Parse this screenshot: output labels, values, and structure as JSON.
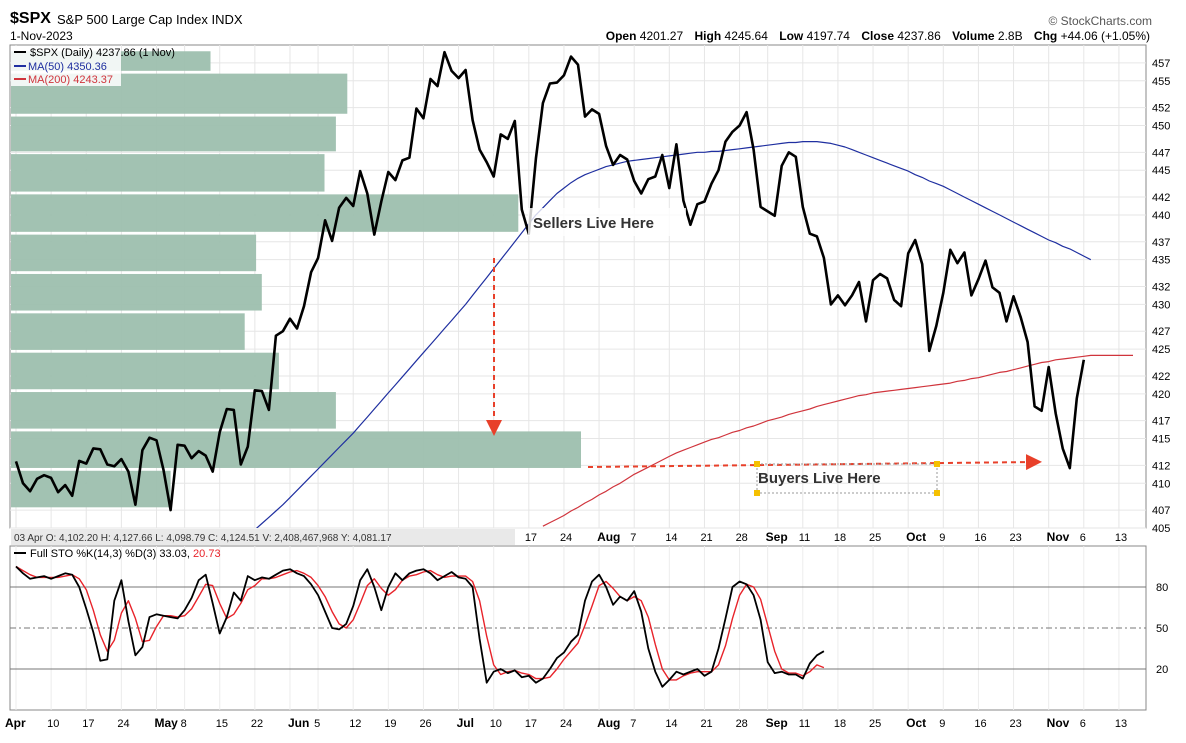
{
  "header": {
    "symbol": "$SPX",
    "name": "S&P 500 Large Cap Index",
    "exchange": "INDX",
    "date": "1-Nov-2023",
    "brand": "© StockCharts.com",
    "ohlc": {
      "open_label": "Open",
      "open": "4201.27",
      "high_label": "High",
      "high": "4245.64",
      "low_label": "Low",
      "low": "4197.74",
      "close_label": "Close",
      "close": "4237.86",
      "volume_label": "Volume",
      "volume": "2.8B",
      "chg_label": "Chg",
      "chg": "+44.06 (+1.05%)"
    }
  },
  "legend": {
    "price": "$SPX (Daily) 4237.86 (1 Nov)",
    "ma50": "MA(50) 4350.36",
    "ma200": "MA(200) 4243.37"
  },
  "annotations": {
    "sellers": "Sellers Live Here",
    "buyers": "Buyers Live Here"
  },
  "info_bar": "03 Apr O: 4,102.20   H: 4,127.66   L: 4,098.79   C: 4,124.51   V: 2,408,467,968   Y: 4,081.17",
  "colors": {
    "price": "#000000",
    "ma50": "#1f2fa0",
    "ma200": "#d0343c",
    "volume_by_price": "#9dbfae",
    "stoch_k": "#000000",
    "stoch_d": "#e8232a",
    "annotation_arrow": "#e8402a"
  },
  "stoch_legend": {
    "label": "Full STO %K(14,3) %D(3) 33.03,",
    "d_value": "20.73"
  },
  "chart_data": [
    {
      "type": "line",
      "ylim": [
        4050,
        4590
      ],
      "yticks": [
        405,
        407,
        410,
        412,
        415,
        417,
        420,
        422,
        425,
        427,
        430,
        432,
        435,
        437,
        440,
        442,
        445,
        447,
        450,
        452,
        455,
        457
      ],
      "x_labels_top": [
        "17",
        "24",
        "Aug",
        "7",
        "14",
        "21",
        "28",
        "Sep",
        "11",
        "18",
        "25",
        "Oct",
        "9",
        "16",
        "23",
        "Nov",
        "6",
        "13"
      ],
      "x_labels_bottom": [
        "Apr",
        "10",
        "17",
        "24",
        "May",
        "8",
        "15",
        "22",
        "Jun",
        "5",
        "12",
        "19",
        "26",
        "Jul",
        "10",
        "17",
        "24",
        "Aug",
        "7",
        "14",
        "21",
        "28",
        "Sep",
        "11",
        "18",
        "25",
        "Oct",
        "9",
        "16",
        "23",
        "Nov",
        "6",
        "13"
      ],
      "x_label_index": [
        0,
        5,
        10,
        15,
        20,
        24,
        29,
        34,
        39,
        43,
        48,
        53,
        58,
        63,
        68,
        73,
        78,
        83,
        88,
        93,
        98,
        103,
        107,
        112,
        117,
        122,
        127,
        132,
        137,
        142,
        147,
        152,
        157
      ],
      "x_label_bold": [
        "Apr",
        "May",
        "Jun",
        "Jul",
        "Aug",
        "Sep",
        "Oct",
        "Nov"
      ],
      "x_max": 160,
      "series": [
        {
          "name": "$SPX (Daily)",
          "values": [
            4124.51,
            4100,
            4091,
            4105,
            4109,
            4106,
            4090,
            4098,
            4086,
            4125,
            4122,
            4139,
            4138,
            4121,
            4119,
            4127,
            4113,
            4076,
            4137,
            4151,
            4148,
            4115,
            4070,
            4143,
            4142,
            4128,
            4136,
            4131,
            4113,
            4157,
            4183,
            4182,
            4121,
            4141,
            4204,
            4203,
            4182,
            4265,
            4270,
            4284,
            4273,
            4298,
            4336,
            4352,
            4394,
            4371,
            4408,
            4419,
            4410,
            4449,
            4424,
            4378,
            4415,
            4448,
            4439,
            4461,
            4464,
            4519,
            4508,
            4552,
            4544,
            4582,
            4561,
            4553,
            4562,
            4506,
            4473,
            4459,
            4443,
            4490,
            4485,
            4505,
            4406,
            4379,
            4463,
            4525,
            4547,
            4548,
            4556,
            4577,
            4568,
            4510,
            4518,
            4513,
            4477,
            4456,
            4467,
            4462,
            4438,
            4424,
            4440,
            4443,
            4467,
            4430,
            4479,
            4416,
            4389,
            4412,
            4415,
            4435,
            4450,
            4482,
            4493,
            4500,
            4515,
            4473,
            4409,
            4404,
            4399,
            4455,
            4470,
            4465,
            4409,
            4379,
            4376,
            4352,
            4300,
            4310,
            4299,
            4310,
            4325,
            4281,
            4327,
            4334,
            4329,
            4305,
            4298,
            4357,
            4372,
            4345,
            4248,
            4276,
            4313,
            4361,
            4346,
            4358,
            4310,
            4328,
            4349,
            4319,
            4313,
            4281,
            4309,
            4286,
            4258,
            4186,
            4181,
            4230,
            4178,
            4139,
            4117,
            4195,
            4238
          ]
        },
        {
          "name": "MA(50)",
          "start_index": 34,
          "values": [
            4048,
            4055,
            4062,
            4069,
            4076,
            4084,
            4092,
            4100,
            4108,
            4116,
            4124,
            4132,
            4140,
            4148,
            4156,
            4165,
            4174,
            4183,
            4192,
            4201,
            4210,
            4219,
            4228,
            4237,
            4246,
            4255,
            4264,
            4273,
            4282,
            4291,
            4300,
            4310,
            4320,
            4330,
            4340,
            4350,
            4360,
            4370,
            4380,
            4390,
            4400,
            4408,
            4416,
            4424,
            4430,
            4436,
            4441,
            4445,
            4448,
            4451,
            4454,
            4456,
            4458,
            4460,
            4461,
            4462,
            4463,
            4464,
            4465,
            4466,
            4467,
            4468,
            4469,
            4470,
            4470,
            4471,
            4471,
            4472,
            4473,
            4474,
            4475,
            4476,
            4477,
            4478,
            4479,
            4480,
            4481,
            4481,
            4482,
            4482,
            4482,
            4481,
            4480,
            4478,
            4476,
            4473,
            4470,
            4467,
            4464,
            4461,
            4458,
            4455,
            4452,
            4449,
            4445,
            4442,
            4438,
            4435,
            4432,
            4428,
            4424,
            4420,
            4416,
            4412,
            4408,
            4404,
            4400,
            4396,
            4392,
            4388,
            4384,
            4380,
            4376,
            4372,
            4369,
            4365,
            4362,
            4358,
            4354,
            4350
          ]
        },
        {
          "name": "MA(200)",
          "start_index": 75,
          "values": [
            4052,
            4056,
            4060,
            4064,
            4069,
            4073,
            4078,
            4082,
            4087,
            4091,
            4096,
            4100,
            4105,
            4110,
            4114,
            4118,
            4122,
            4126,
            4130,
            4134,
            4137,
            4140,
            4143,
            4146,
            4149,
            4151,
            4154,
            4157,
            4159,
            4162,
            4164,
            4167,
            4170,
            4172,
            4174,
            4177,
            4179,
            4181,
            4183,
            4186,
            4188,
            4190,
            4192,
            4194,
            4196,
            4198,
            4199,
            4201,
            4202,
            4203,
            4204,
            4205,
            4206,
            4207,
            4208,
            4209,
            4210,
            4211,
            4212,
            4214,
            4215,
            4217,
            4218,
            4220,
            4222,
            4224,
            4225,
            4227,
            4229,
            4231,
            4233,
            4235,
            4236,
            4238,
            4239,
            4240,
            4241,
            4242,
            4243,
            4243,
            4243,
            4243,
            4243,
            4243,
            4243
          ]
        }
      ],
      "volume_by_price": {
        "bins": [
          {
            "from": 4560,
            "to": 4583,
            "width": 0.35
          },
          {
            "from": 4512,
            "to": 4558,
            "width": 0.59
          },
          {
            "from": 4470,
            "to": 4510,
            "width": 0.57
          },
          {
            "from": 4425,
            "to": 4468,
            "width": 0.55
          },
          {
            "from": 4380,
            "to": 4423,
            "width": 0.89
          },
          {
            "from": 4336,
            "to": 4378,
            "width": 0.43
          },
          {
            "from": 4292,
            "to": 4334,
            "width": 0.44
          },
          {
            "from": 4248,
            "to": 4290,
            "width": 0.41
          },
          {
            "from": 4204,
            "to": 4246,
            "width": 0.47
          },
          {
            "from": 4160,
            "to": 4202,
            "width": 0.57
          },
          {
            "from": 4116,
            "to": 4158,
            "width": 1.0
          },
          {
            "from": 4072,
            "to": 4114,
            "width": 0.28
          }
        ]
      }
    },
    {
      "type": "line",
      "ylim": [
        -10,
        110
      ],
      "yticks": [
        20,
        50,
        80
      ],
      "reference_lines": [
        20,
        50,
        80
      ],
      "series": [
        {
          "name": "%K(14,3)",
          "values": [
            95,
            90,
            86,
            87,
            88,
            86,
            88,
            90,
            89,
            80,
            64,
            47,
            26,
            27,
            70,
            85,
            55,
            30,
            36,
            58,
            60,
            59,
            58,
            57,
            63,
            72,
            85,
            89,
            68,
            46,
            58,
            76,
            70,
            88,
            85,
            87,
            86,
            89,
            92,
            93,
            90,
            88,
            82,
            74,
            62,
            50,
            49,
            53,
            66,
            85,
            93,
            80,
            63,
            80,
            90,
            85,
            90,
            92,
            93,
            90,
            85,
            88,
            91,
            87,
            86,
            80,
            42,
            10,
            18,
            20,
            17,
            19,
            14,
            15,
            10,
            13,
            20,
            28,
            32,
            40,
            45,
            70,
            84,
            89,
            80,
            67,
            73,
            70,
            77,
            62,
            35,
            18,
            7,
            12,
            18,
            16,
            18,
            20,
            15,
            18,
            35,
            57,
            80,
            84,
            82,
            74,
            56,
            25,
            17,
            18,
            16,
            16,
            13,
            24,
            30,
            33
          ],
          "shown_count": 116
        },
        {
          "name": "%D(3)",
          "values": [
            95,
            92,
            89,
            87,
            87,
            87,
            87,
            88,
            89,
            86,
            78,
            63,
            45,
            33,
            41,
            61,
            70,
            57,
            40,
            41,
            51,
            59,
            59,
            58,
            59,
            64,
            73,
            82,
            81,
            68,
            57,
            60,
            68,
            78,
            81,
            86,
            86,
            87,
            89,
            91,
            92,
            90,
            87,
            81,
            73,
            62,
            53,
            50,
            56,
            68,
            81,
            86,
            79,
            74,
            78,
            85,
            88,
            89,
            91,
            92,
            89,
            87,
            88,
            88,
            88,
            84,
            70,
            44,
            23,
            16,
            18,
            19,
            17,
            16,
            13,
            13,
            14,
            20,
            27,
            33,
            39,
            52,
            66,
            81,
            84,
            79,
            73,
            70,
            73,
            70,
            58,
            38,
            20,
            12,
            12,
            15,
            17,
            18,
            18,
            18,
            23,
            37,
            57,
            74,
            82,
            80,
            71,
            52,
            33,
            20,
            17,
            17,
            15,
            18,
            23,
            21
          ]
        }
      ]
    }
  ]
}
